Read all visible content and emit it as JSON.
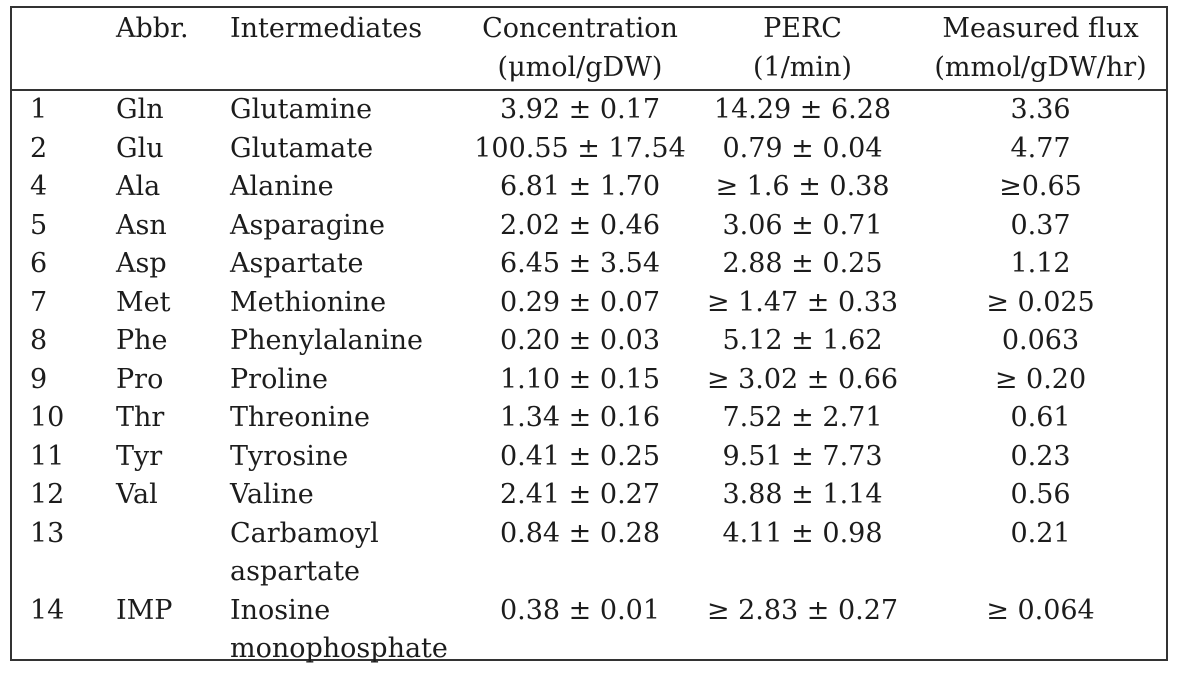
{
  "table": {
    "headers": {
      "num": "",
      "abbr": "Abbr.",
      "name": "Intermediates",
      "conc_line1": "Concentration",
      "conc_line2": "(μmol/gDW)",
      "perc_line1": "PERC",
      "perc_line2": "(1/min)",
      "flux_line1": "Measured flux",
      "flux_line2": "(mmol/gDW/hr)"
    },
    "rows": [
      {
        "num": "1",
        "abbr": "Gln",
        "name": "Glutamine",
        "name_line2": "",
        "conc": "3.92 ± 0.17",
        "perc": "14.29 ± 6.28",
        "flux": "3.36"
      },
      {
        "num": "2",
        "abbr": "Glu",
        "name": "Glutamate",
        "name_line2": "",
        "conc": "100.55 ± 17.54",
        "perc": "0.79 ± 0.04",
        "flux": "4.77"
      },
      {
        "num": "4",
        "abbr": "Ala",
        "name": "Alanine",
        "name_line2": "",
        "conc": "6.81 ± 1.70",
        "perc": "≥ 1.6 ± 0.38",
        "flux": "≥0.65"
      },
      {
        "num": "5",
        "abbr": "Asn",
        "name": "Asparagine",
        "name_line2": "",
        "conc": "2.02 ± 0.46",
        "perc": "3.06 ± 0.71",
        "flux": "0.37"
      },
      {
        "num": "6",
        "abbr": "Asp",
        "name": "Aspartate",
        "name_line2": "",
        "conc": "6.45 ± 3.54",
        "perc": "2.88 ± 0.25",
        "flux": "1.12"
      },
      {
        "num": "7",
        "abbr": "Met",
        "name": "Methionine",
        "name_line2": "",
        "conc": "0.29 ± 0.07",
        "perc": "≥ 1.47 ± 0.33",
        "flux": "≥ 0.025"
      },
      {
        "num": "8",
        "abbr": "Phe",
        "name": "Phenylalanine",
        "name_line2": "",
        "conc": "0.20 ± 0.03",
        "perc": "5.12 ± 1.62",
        "flux": "0.063"
      },
      {
        "num": "9",
        "abbr": "Pro",
        "name": "Proline",
        "name_line2": "",
        "conc": "1.10 ± 0.15",
        "perc": "≥ 3.02 ± 0.66",
        "flux": "≥ 0.20"
      },
      {
        "num": "10",
        "abbr": "Thr",
        "name": "Threonine",
        "name_line2": "",
        "conc": "1.34 ± 0.16",
        "perc": "7.52 ± 2.71",
        "flux": "0.61"
      },
      {
        "num": "11",
        "abbr": "Tyr",
        "name": "Tyrosine",
        "name_line2": "",
        "conc": "0.41 ± 0.25",
        "perc": "9.51 ± 7.73",
        "flux": "0.23"
      },
      {
        "num": "12",
        "abbr": "Val",
        "name": "Valine",
        "name_line2": "",
        "conc": "2.41 ± 0.27",
        "perc": "3.88 ± 1.14",
        "flux": "0.56"
      },
      {
        "num": "13",
        "abbr": "",
        "name": "Carbamoyl",
        "name_line2": "aspartate",
        "conc": "0.84 ± 0.28",
        "perc": "4.11 ± 0.98",
        "flux": "0.21"
      },
      {
        "num": "14",
        "abbr": "IMP",
        "name": "Inosine",
        "name_line2": "monophosphate",
        "conc": "0.38 ± 0.01",
        "perc": "≥ 2.83 ± 0.27",
        "flux": "≥ 0.064"
      }
    ]
  }
}
